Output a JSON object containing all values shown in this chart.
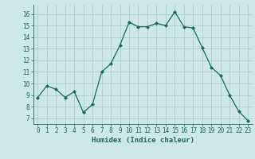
{
  "x": [
    0,
    1,
    2,
    3,
    4,
    5,
    6,
    7,
    8,
    9,
    10,
    11,
    12,
    13,
    14,
    15,
    16,
    17,
    18,
    19,
    20,
    21,
    22,
    23
  ],
  "y": [
    8.8,
    9.8,
    9.5,
    8.8,
    9.3,
    7.5,
    8.2,
    11.0,
    11.7,
    13.3,
    15.3,
    14.9,
    14.9,
    15.2,
    15.0,
    16.2,
    14.9,
    14.8,
    13.1,
    11.4,
    10.7,
    9.0,
    7.6,
    6.8
  ],
  "xlabel": "Humidex (Indice chaleur)",
  "xlim": [
    -0.5,
    23.5
  ],
  "ylim": [
    6.5,
    16.8
  ],
  "yticks": [
    7,
    8,
    9,
    10,
    11,
    12,
    13,
    14,
    15,
    16
  ],
  "xticks": [
    0,
    1,
    2,
    3,
    4,
    5,
    6,
    7,
    8,
    9,
    10,
    11,
    12,
    13,
    14,
    15,
    16,
    17,
    18,
    19,
    20,
    21,
    22,
    23
  ],
  "bg_color": "#cce8e8",
  "grid_color": "#aecece",
  "line_color": "#1a6b5a",
  "tick_fontsize": 5.5,
  "label_fontsize": 6.5
}
